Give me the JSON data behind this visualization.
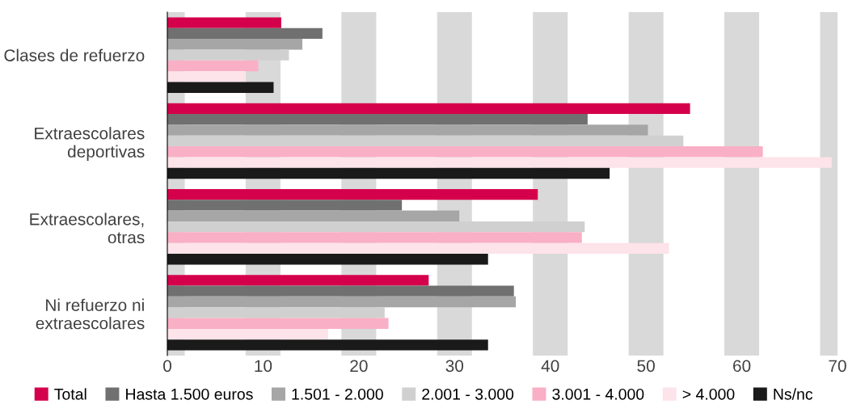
{
  "chart_data": {
    "type": "bar",
    "orientation": "horizontal",
    "categories": [
      "Clases de refuerzo",
      "Extraescolares\ndeportivas",
      "Extraescolares,\notras",
      "Ni refuerzo ni\nextraescolares"
    ],
    "series": [
      {
        "name": "Total",
        "color": "#d5004b",
        "values": [
          11.9,
          54.6,
          38.7,
          27.3
        ]
      },
      {
        "name": "Hasta 1.500 euros",
        "color": "#707070",
        "values": [
          16.2,
          43.9,
          24.5,
          36.2
        ]
      },
      {
        "name": "1.501 - 2.000",
        "color": "#a6a6a6",
        "values": [
          14.1,
          50.2,
          30.5,
          36.4
        ]
      },
      {
        "name": "2.001 - 3.000",
        "color": "#d0d0d0",
        "values": [
          12.7,
          53.9,
          43.6,
          22.7
        ]
      },
      {
        "name": "3.001 - 4.000",
        "color": "#f9afc6",
        "values": [
          9.5,
          62.2,
          43.3,
          23.1
        ]
      },
      {
        "name": "> 4.000",
        "color": "#fde3ea",
        "values": [
          8.2,
          69.4,
          52.4,
          16.8
        ]
      },
      {
        "name": "Ns/nc",
        "color": "#1a1a1a",
        "values": [
          11.1,
          46.2,
          33.5,
          33.5
        ]
      }
    ],
    "xlim": [
      0,
      70
    ],
    "xticks": [
      0,
      10,
      20,
      30,
      40,
      50,
      60,
      70
    ],
    "grid": "x",
    "legend": "bottom"
  }
}
